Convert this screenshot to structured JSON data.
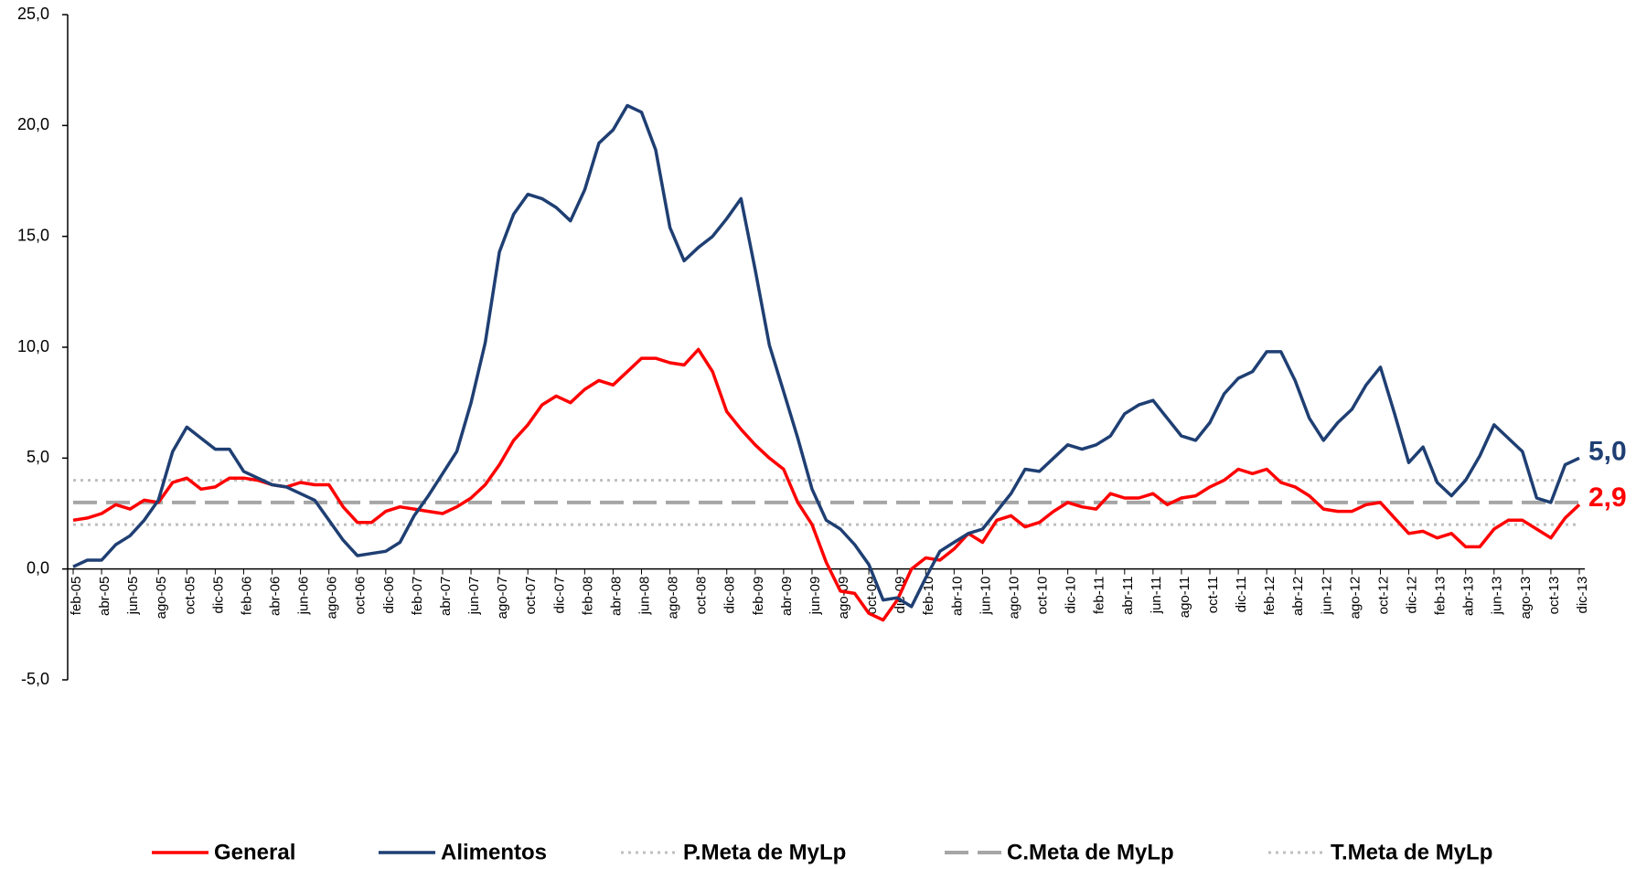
{
  "chart_data": {
    "type": "line",
    "categories": [
      "feb-05",
      null,
      "abr-05",
      null,
      "jun-05",
      null,
      "ago-05",
      null,
      "oct-05",
      null,
      "dic-05",
      null,
      "feb-06",
      null,
      "abr-06",
      null,
      "jun-06",
      null,
      "ago-06",
      null,
      "oct-06",
      null,
      "dic-06",
      null,
      "feb-07",
      null,
      "abr-07",
      null,
      "jun-07",
      null,
      "ago-07",
      null,
      "oct-07",
      null,
      "dic-07",
      null,
      "feb-08",
      null,
      "abr-08",
      null,
      "jun-08",
      null,
      "ago-08",
      null,
      "oct-08",
      null,
      "dic-08",
      null,
      "feb-09",
      null,
      "abr-09",
      null,
      "jun-09",
      null,
      "ago-09",
      null,
      "oct-09",
      null,
      "dic-09",
      null,
      "feb-10",
      null,
      "abr-10",
      null,
      "jun-10",
      null,
      "ago-10",
      null,
      "oct-10",
      null,
      "dic-10",
      null,
      "feb-11",
      null,
      "abr-11",
      null,
      "jun-11",
      null,
      "ago-11",
      null,
      "oct-11",
      null,
      "dic-11",
      null,
      "feb-12",
      null,
      "abr-12",
      null,
      "jun-12",
      null,
      "ago-12",
      null,
      "oct-12",
      null,
      "dic-12",
      null,
      "feb-13",
      null,
      "abr-13",
      null,
      "jun-13",
      null,
      "ago-13",
      null,
      "oct-13",
      null,
      "dic-13"
    ],
    "series": [
      {
        "name": "General",
        "color": "#ff0000",
        "style": "solid",
        "values": [
          2.2,
          2.3,
          2.5,
          2.9,
          2.7,
          3.1,
          3.0,
          3.9,
          4.1,
          3.6,
          3.7,
          4.1,
          4.1,
          4.0,
          3.8,
          3.7,
          3.9,
          3.8,
          3.8,
          2.8,
          2.1,
          2.1,
          2.6,
          2.8,
          2.7,
          2.6,
          2.5,
          2.8,
          3.2,
          3.8,
          4.7,
          5.8,
          6.5,
          7.4,
          7.8,
          7.5,
          8.1,
          8.5,
          8.3,
          8.9,
          9.5,
          9.5,
          9.3,
          9.2,
          9.9,
          8.9,
          7.1,
          6.3,
          5.6,
          5.0,
          4.5,
          3.0,
          2.0,
          0.3,
          -1.0,
          -1.1,
          -2.0,
          -2.3,
          -1.4,
          0.0,
          0.5,
          0.4,
          0.9,
          1.6,
          1.2,
          2.2,
          2.4,
          1.9,
          2.1,
          2.6,
          3.0,
          2.8,
          2.7,
          3.4,
          3.2,
          3.2,
          3.4,
          2.9,
          3.2,
          3.3,
          3.7,
          4.0,
          4.5,
          4.3,
          4.5,
          3.9,
          3.7,
          3.3,
          2.7,
          2.6,
          2.6,
          2.9,
          3.0,
          2.3,
          1.6,
          1.7,
          1.4,
          1.6,
          1.0,
          1.0,
          1.8,
          2.2,
          2.2,
          1.8,
          1.4,
          2.3,
          2.9
        ],
        "value_labels": [
          null,
          null,
          null,
          null,
          null,
          null,
          null,
          null,
          null,
          null,
          null,
          null,
          null,
          null,
          null,
          null,
          null,
          null,
          null,
          null,
          null,
          null,
          null,
          null,
          null,
          null,
          null,
          null,
          null,
          null,
          null,
          null,
          null,
          null,
          null,
          null,
          null,
          null,
          null,
          null,
          null,
          null,
          null,
          null,
          null,
          null,
          null,
          null,
          null,
          null,
          null,
          null,
          null,
          null,
          null,
          null,
          null,
          null,
          null,
          null,
          null,
          null,
          null,
          null,
          null,
          null,
          null,
          null,
          null,
          null,
          null,
          null,
          null,
          null,
          null,
          null,
          null,
          null,
          null,
          null,
          null,
          null,
          null,
          null,
          null,
          null,
          null,
          null,
          null,
          null,
          null,
          null,
          null,
          null,
          null,
          null,
          null,
          null,
          null,
          null,
          null,
          null,
          null,
          null,
          null,
          null,
          "2,9"
        ]
      },
      {
        "name": "Alimentos",
        "color": "#1f3f73",
        "style": "solid",
        "values": [
          0.1,
          0.4,
          0.4,
          1.1,
          1.5,
          2.2,
          3.1,
          5.3,
          6.4,
          5.9,
          5.4,
          5.4,
          4.4,
          4.1,
          3.8,
          3.7,
          3.4,
          3.1,
          2.2,
          1.3,
          0.6,
          0.7,
          0.8,
          1.2,
          2.4,
          3.3,
          4.3,
          5.3,
          7.5,
          10.2,
          14.3,
          16.0,
          16.9,
          16.7,
          16.3,
          15.7,
          17.1,
          19.2,
          19.8,
          20.9,
          20.6,
          18.9,
          15.4,
          13.9,
          14.5,
          15.0,
          15.8,
          16.7,
          13.5,
          10.1,
          8.0,
          5.9,
          3.6,
          2.2,
          1.8,
          1.1,
          0.2,
          -1.4,
          -1.3,
          -1.7,
          -0.4,
          0.8,
          1.2,
          1.6,
          1.8,
          2.6,
          3.4,
          4.5,
          4.4,
          5.0,
          5.6,
          5.4,
          5.6,
          6.0,
          7.0,
          7.4,
          7.6,
          6.8,
          6.0,
          5.8,
          6.6,
          7.9,
          8.6,
          8.9,
          9.8,
          9.8,
          8.5,
          6.8,
          5.8,
          6.6,
          7.2,
          8.3,
          9.1,
          7.0,
          4.8,
          5.5,
          3.9,
          3.3,
          4.0,
          5.1,
          6.5,
          5.9,
          5.3,
          3.2,
          3.0,
          4.7,
          5.0
        ],
        "value_labels": [
          null,
          null,
          null,
          null,
          null,
          null,
          null,
          null,
          null,
          null,
          null,
          null,
          null,
          null,
          null,
          null,
          null,
          null,
          null,
          null,
          null,
          null,
          null,
          null,
          null,
          null,
          null,
          null,
          null,
          null,
          null,
          null,
          null,
          null,
          null,
          null,
          null,
          null,
          null,
          null,
          null,
          null,
          null,
          null,
          null,
          null,
          null,
          null,
          null,
          null,
          null,
          null,
          null,
          null,
          null,
          null,
          null,
          null,
          null,
          null,
          null,
          null,
          null,
          null,
          null,
          null,
          null,
          null,
          null,
          null,
          null,
          null,
          null,
          null,
          null,
          null,
          null,
          null,
          null,
          null,
          null,
          null,
          null,
          null,
          null,
          null,
          null,
          null,
          null,
          null,
          null,
          null,
          null,
          null,
          null,
          null,
          null,
          null,
          null,
          null,
          null,
          null,
          null,
          null,
          null,
          null,
          "5,0"
        ]
      },
      {
        "name": "P.Meta de MyLp",
        "color": "#bfbfbf",
        "style": "dotted",
        "values": [
          4,
          4,
          4,
          4,
          4,
          4,
          4,
          4,
          4,
          4,
          4,
          4,
          4,
          4,
          4,
          4,
          4,
          4,
          4,
          4,
          4,
          4,
          4,
          4,
          4,
          4,
          4,
          4,
          4,
          4,
          4,
          4,
          4,
          4,
          4,
          4,
          4,
          4,
          4,
          4,
          4,
          4,
          4,
          4,
          4,
          4,
          4,
          4,
          4,
          4,
          4,
          4,
          4,
          4,
          4,
          4,
          4,
          4,
          4,
          4,
          4,
          4,
          4,
          4,
          4,
          4,
          4,
          4,
          4,
          4,
          4,
          4,
          4,
          4,
          4,
          4,
          4,
          4,
          4,
          4,
          4,
          4,
          4,
          4,
          4,
          4,
          4,
          4,
          4,
          4,
          4,
          4,
          4,
          4,
          4,
          4,
          4,
          4,
          4,
          4,
          4,
          4,
          4,
          4,
          4,
          4,
          4
        ]
      },
      {
        "name": "C.Meta de MyLp",
        "color": "#a6a6a6",
        "style": "dashed",
        "values": [
          3,
          3,
          3,
          3,
          3,
          3,
          3,
          3,
          3,
          3,
          3,
          3,
          3,
          3,
          3,
          3,
          3,
          3,
          3,
          3,
          3,
          3,
          3,
          3,
          3,
          3,
          3,
          3,
          3,
          3,
          3,
          3,
          3,
          3,
          3,
          3,
          3,
          3,
          3,
          3,
          3,
          3,
          3,
          3,
          3,
          3,
          3,
          3,
          3,
          3,
          3,
          3,
          3,
          3,
          3,
          3,
          3,
          3,
          3,
          3,
          3,
          3,
          3,
          3,
          3,
          3,
          3,
          3,
          3,
          3,
          3,
          3,
          3,
          3,
          3,
          3,
          3,
          3,
          3,
          3,
          3,
          3,
          3,
          3,
          3,
          3,
          3,
          3,
          3,
          3,
          3,
          3,
          3,
          3,
          3,
          3,
          3,
          3,
          3,
          3,
          3,
          3,
          3,
          3,
          3,
          3,
          3
        ]
      },
      {
        "name": "T.Meta de MyLp",
        "color": "#bfbfbf",
        "style": "dotted",
        "values": [
          2,
          2,
          2,
          2,
          2,
          2,
          2,
          2,
          2,
          2,
          2,
          2,
          2,
          2,
          2,
          2,
          2,
          2,
          2,
          2,
          2,
          2,
          2,
          2,
          2,
          2,
          2,
          2,
          2,
          2,
          2,
          2,
          2,
          2,
          2,
          2,
          2,
          2,
          2,
          2,
          2,
          2,
          2,
          2,
          2,
          2,
          2,
          2,
          2,
          2,
          2,
          2,
          2,
          2,
          2,
          2,
          2,
          2,
          2,
          2,
          2,
          2,
          2,
          2,
          2,
          2,
          2,
          2,
          2,
          2,
          2,
          2,
          2,
          2,
          2,
          2,
          2,
          2,
          2,
          2,
          2,
          2,
          2,
          2,
          2,
          2,
          2,
          2,
          2,
          2,
          2,
          2,
          2,
          2,
          2,
          2,
          2,
          2,
          2,
          2,
          2,
          2,
          2,
          2,
          2,
          2,
          2
        ]
      }
    ],
    "ylim": [
      -5,
      25
    ],
    "yticks": [
      {
        "value": -5,
        "label": "-5,0"
      },
      {
        "value": 0,
        "label": "0,0"
      },
      {
        "value": 5,
        "label": "5,0"
      },
      {
        "value": 10,
        "label": "10,0"
      },
      {
        "value": 15,
        "label": "15,0"
      },
      {
        "value": 20,
        "label": "20,0"
      },
      {
        "value": 25,
        "label": "25,0"
      }
    ],
    "grid": false,
    "legend": "bottom"
  }
}
